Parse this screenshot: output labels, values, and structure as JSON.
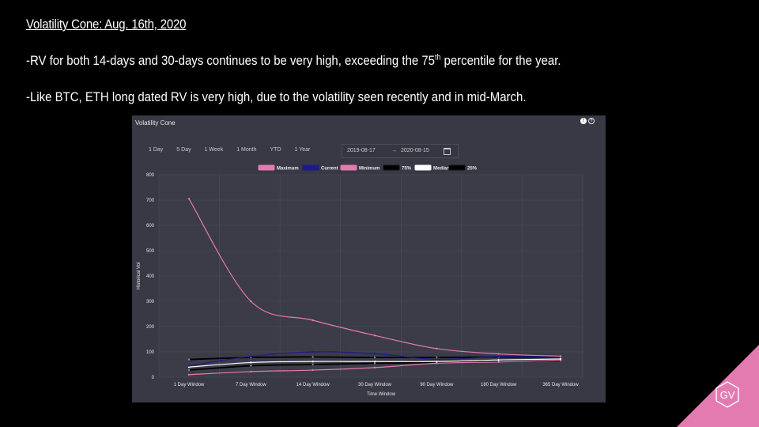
{
  "slide": {
    "title": "Volatility Cone: Aug. 16th, 2020",
    "bullet1_a": "-RV for both 14-days and 30-days continues to be very high, exceeding the 75",
    "bullet1_sup": "th",
    "bullet1_b": " percentile for the year.",
    "bullet2": "-Like BTC, ETH long dated RV is very high, due to the volatility seen recently and in mid-March."
  },
  "panel": {
    "title": "Volatility Cone",
    "ranges": [
      "1 Day",
      "5 Day",
      "1 Week",
      "1 Month",
      "YTD",
      "1 Year"
    ],
    "date_from": "2019-08-17",
    "date_sep": "→",
    "date_to": "2020-08-15",
    "icons": [
      "info-icon",
      "help-icon",
      "calendar-icon"
    ]
  },
  "logo": {
    "text": "GV",
    "color": "#e47bb0"
  },
  "chart_data": {
    "type": "line",
    "title": "",
    "xlabel": "Time Window",
    "ylabel": "Historical Vol",
    "ylim": [
      0,
      800
    ],
    "yticks": [
      0,
      100,
      200,
      300,
      400,
      500,
      600,
      700,
      800
    ],
    "grid": true,
    "legend_position": "top",
    "categories": [
      "1 Day Window",
      "7 Day Window",
      "14 Day Window",
      "30 Day Window",
      "90 Day Window",
      "180 Day Window",
      "365 Day Window"
    ],
    "series": [
      {
        "name": "Maximum",
        "color": "#e47bb0",
        "values": [
          705,
          300,
          225,
          165,
          113,
          92,
          83
        ]
      },
      {
        "name": "Current",
        "color": "#1d1a8a",
        "values": [
          45,
          82,
          100,
          93,
          70,
          82,
          82
        ]
      },
      {
        "name": "Minimum",
        "color": "#e47bb0",
        "values": [
          10,
          22,
          28,
          38,
          55,
          60,
          68
        ]
      },
      {
        "name": "75%",
        "color": "#000000",
        "values": [
          70,
          78,
          80,
          78,
          78,
          80,
          80
        ]
      },
      {
        "name": "Median",
        "color": "#ffffff",
        "values": [
          40,
          58,
          62,
          62,
          62,
          68,
          72
        ]
      },
      {
        "name": "25%",
        "color": "#000000",
        "values": [
          28,
          45,
          50,
          55,
          58,
          62,
          66
        ]
      }
    ]
  }
}
